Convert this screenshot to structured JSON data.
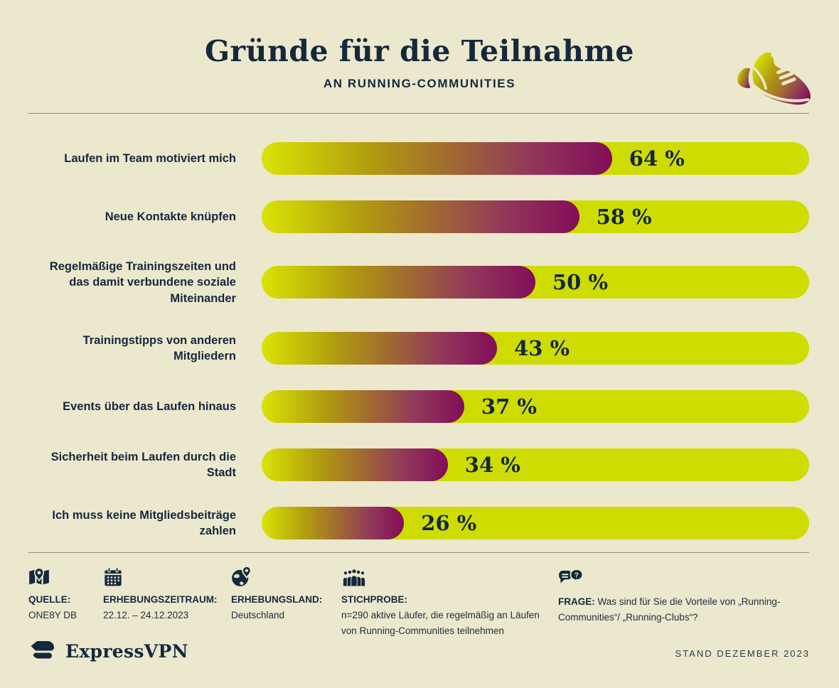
{
  "page": {
    "background_color": "#ece8cd",
    "navy_color": "#14283e",
    "track_color": "#cfdc02",
    "gradient_start_color": "#d9e404",
    "gradient_end_color": "#830d59"
  },
  "header": {
    "title": "Gründe für die Teilnahme",
    "subtitle": "AN RUNNING-COMMUNITIES",
    "decoration_icon": "running-shoe-icon"
  },
  "chart_data": {
    "type": "bar",
    "orientation": "horizontal",
    "title": "Gründe für die Teilnahme an Running-Communities",
    "xlim": [
      0,
      100
    ],
    "grid": false,
    "legend": false,
    "categories": [
      "Laufen im Team motiviert mich",
      "Neue Kontakte knüpfen",
      "Regelmäßige Trainingszeiten und das damit verbundene soziale Miteinander",
      "Trainingstipps von anderen Mitgliedern",
      "Events über das Laufen hinaus",
      "Sicherheit beim Laufen durch die Stadt",
      "Ich muss keine Mitgliedsbeiträge zahlen"
    ],
    "values": [
      64,
      58,
      50,
      43,
      37,
      34,
      26
    ],
    "value_labels": [
      "64 %",
      "58 %",
      "50 %",
      "43 %",
      "37 %",
      "34 %",
      "26 %"
    ],
    "bar_track_color": "#cfdc02",
    "bar_gradient": [
      "#d9e404",
      "#830d59"
    ]
  },
  "footer": {
    "items": [
      {
        "icon": "map-pin-icon",
        "label": "QUELLE:",
        "value": "ONE8Y DB"
      },
      {
        "icon": "calendar-icon",
        "label": "ERHEBUNGSZEITRAUM:",
        "value": "22.12. – 24.12.2023"
      },
      {
        "icon": "globe-pin-icon",
        "label": "ERHEBUNGSLAND:",
        "value": "Deutschland"
      },
      {
        "icon": "people-group-icon",
        "label": "STICHPROBE:",
        "value": "n=290 aktive Läufer, die regelmäßig an Läufen von Running-Communities teilnehmen"
      },
      {
        "icon": "speech-bubbles-icon",
        "label": "FRAGE:",
        "value": "Was sind für Sie die Vorteile von „Running-Communities“/ „Running-Clubs“?"
      }
    ]
  },
  "branding": {
    "logo_text": "ExpressVPN",
    "stand_text": "STAND DEZEMBER 2023"
  }
}
